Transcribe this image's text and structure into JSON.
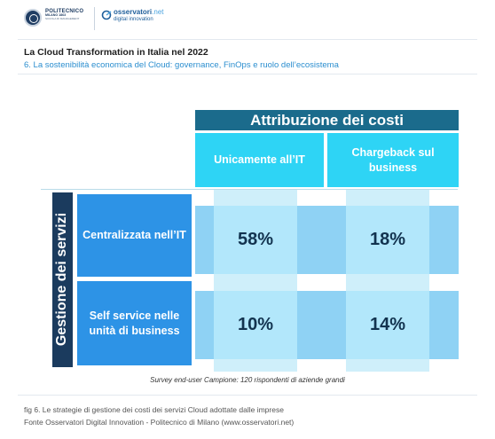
{
  "header": {
    "polimi": {
      "name": "POLITECNICO",
      "city": "MILANO 1863",
      "school": "SCUOLA DI MANAGEMENT"
    },
    "observatori": {
      "brand": "osservatori",
      "brand_suffix": ".net",
      "tagline": "digital innovation"
    },
    "title": "La Cloud Transformation in Italia nel 2022",
    "subtitle": "6. La sostenibilità economica del Cloud: governance, FinOps e ruolo dell’ecosistema"
  },
  "matrix": {
    "column_group": "Attribuzione dei costi",
    "columns": [
      "Unicamente all’IT",
      "Chargeback sul business"
    ],
    "row_group": "Gestione dei servizi",
    "rows": [
      {
        "label": "Centralizzata nell’IT",
        "values": [
          "58%",
          "18%"
        ]
      },
      {
        "label": "Self service nelle unità di business",
        "values": [
          "10%",
          "14%"
        ]
      }
    ],
    "note": "Survey end-user Campione: 120 rispondenti di aziende grandi"
  },
  "footer": {
    "caption": "fig 6. Le strategie di gestione dei costi dei servizi Cloud adottate dalle imprese",
    "source": "Fonte Osservatori Digital Innovation - Politecnico di Milano (www.osservatori.net)"
  },
  "colors": {
    "column_group_header": "#1b6b8c",
    "column_header": "#2ed4f5",
    "row_group_header": "#1b3b5e",
    "row_header": "#2d93e6",
    "cell": "#b2e7fb",
    "value_text": "#12334f",
    "subtitle": "#2b8ecf"
  }
}
